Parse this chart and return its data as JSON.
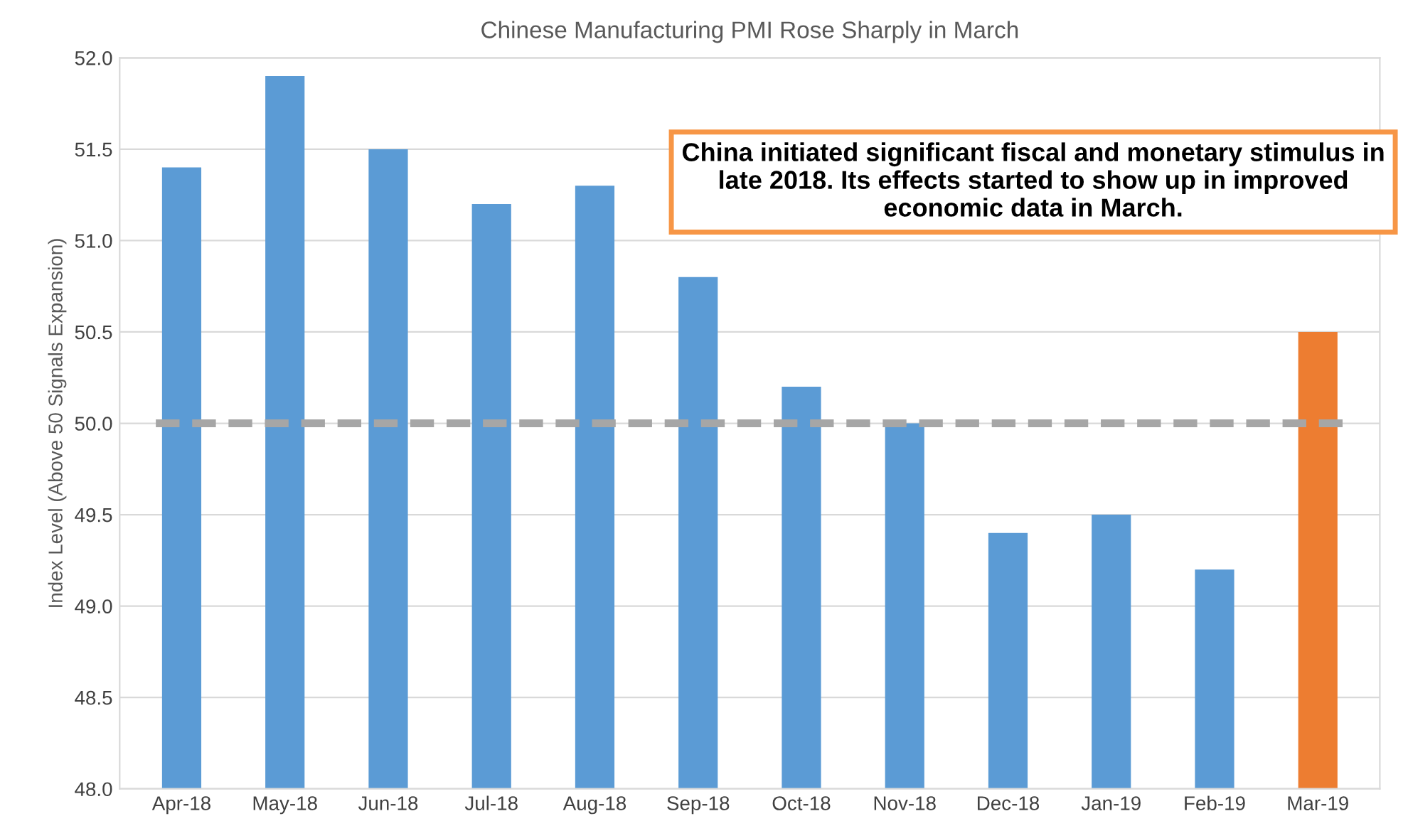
{
  "chart_data": {
    "type": "bar",
    "title": "Chinese Manufacturing PMI Rose Sharply in March",
    "ylabel": "Index Level (Above 50 Signals Expansion)",
    "categories": [
      "Apr-18",
      "May-18",
      "Jun-18",
      "Jul-18",
      "Aug-18",
      "Sep-18",
      "Oct-18",
      "Nov-18",
      "Dec-18",
      "Jan-19",
      "Feb-19",
      "Mar-19"
    ],
    "values": [
      51.4,
      51.9,
      51.5,
      51.2,
      51.3,
      50.8,
      50.2,
      50.0,
      49.4,
      49.5,
      49.2,
      50.5
    ],
    "colors": [
      "#5b9bd5",
      "#5b9bd5",
      "#5b9bd5",
      "#5b9bd5",
      "#5b9bd5",
      "#5b9bd5",
      "#5b9bd5",
      "#5b9bd5",
      "#5b9bd5",
      "#5b9bd5",
      "#5b9bd5",
      "#ed7d31"
    ],
    "ylim": [
      48.0,
      52.0
    ],
    "yticks": [
      {
        "value": 48.0,
        "label": "48.0"
      },
      {
        "value": 48.5,
        "label": "48.5"
      },
      {
        "value": 49.0,
        "label": "49.0"
      },
      {
        "value": 49.5,
        "label": "49.5"
      },
      {
        "value": 50.0,
        "label": "50.0"
      },
      {
        "value": 50.5,
        "label": "50.5"
      },
      {
        "value": 51.0,
        "label": "51.0"
      },
      {
        "value": 51.5,
        "label": "51.5"
      },
      {
        "value": 52.0,
        "label": "52.0"
      }
    ],
    "grid": "y",
    "ref_lines": [
      {
        "axis": "y",
        "value": 50.0,
        "color": "#a6a6a6",
        "line_style": "dashed"
      }
    ],
    "annotations": [
      "China initiated significant fiscal and monetary stimulus in late 2018. Its effects started to show up in improved economic data in March."
    ]
  }
}
